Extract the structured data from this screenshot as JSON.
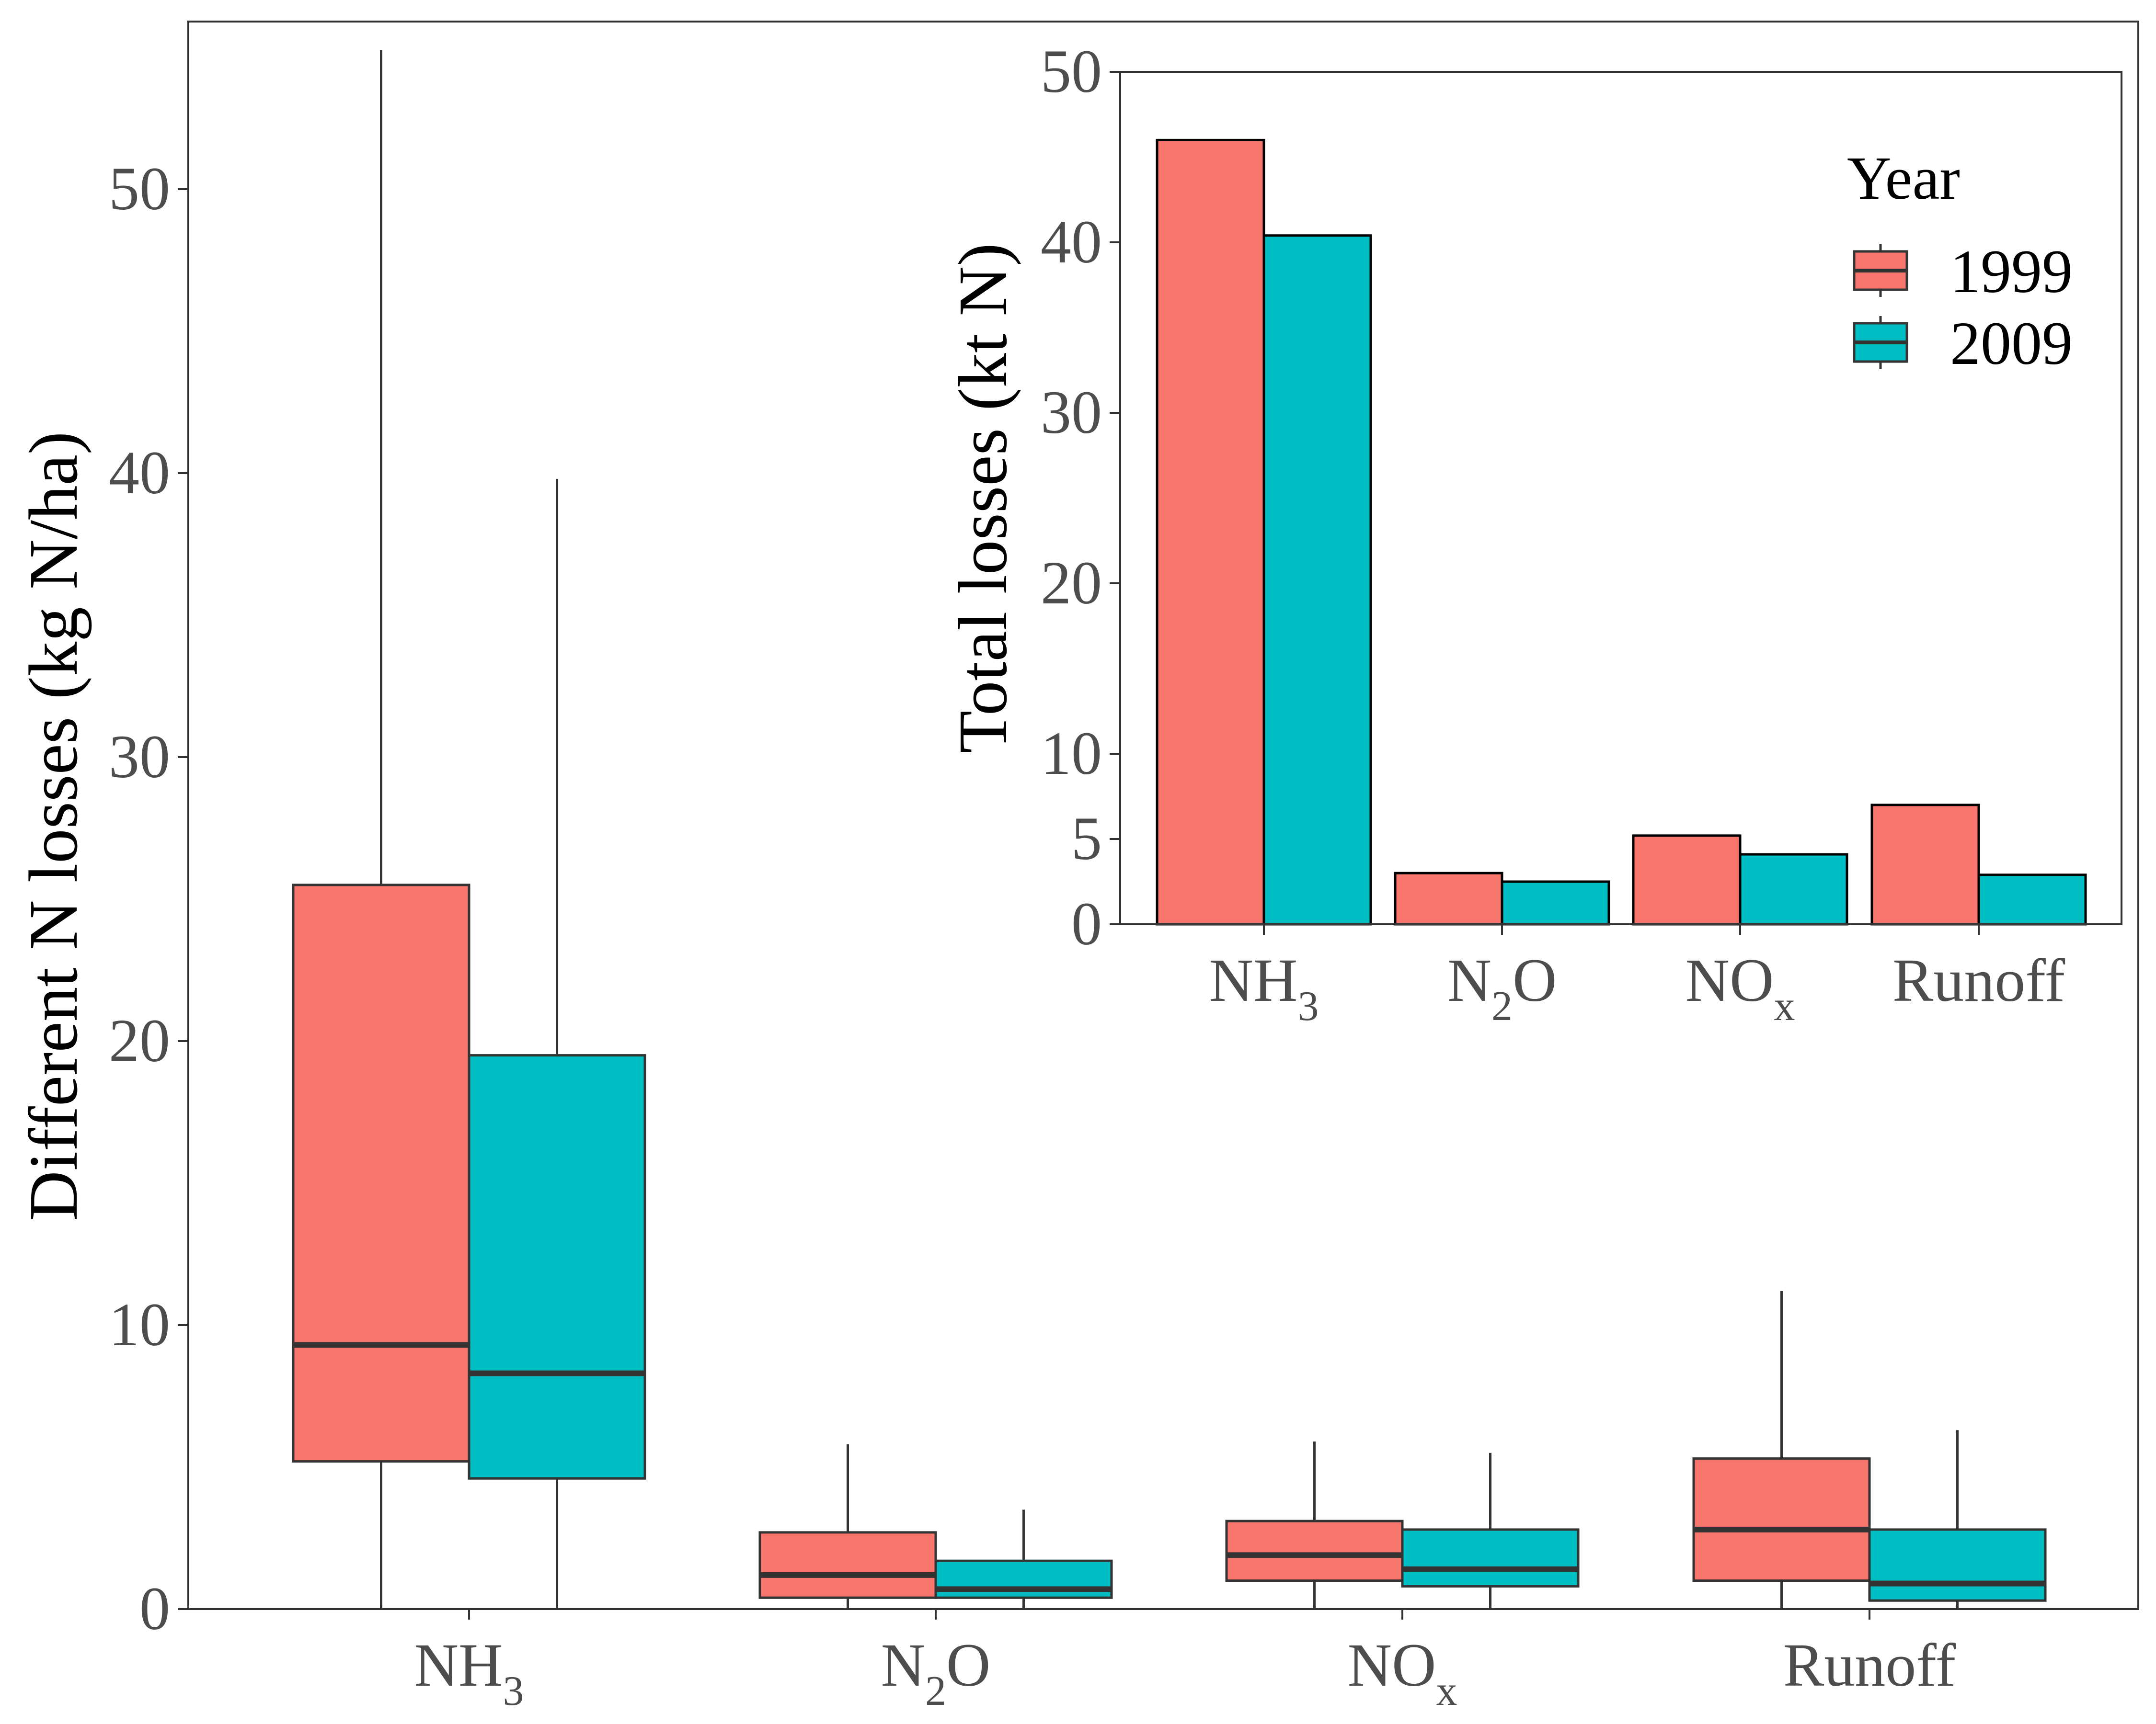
{
  "chart_data": [
    {
      "type": "box",
      "name": "main",
      "ylabel": "Different N losses (kg N/ha)",
      "xlabel": "",
      "ylim": [
        0,
        55
      ],
      "yticks": [
        0,
        10,
        20,
        30,
        40,
        50
      ],
      "categories": [
        {
          "base": "NH",
          "sub": "3",
          "after": ""
        },
        {
          "base": "N",
          "sub": "2",
          "after": "O"
        },
        {
          "base": "NO",
          "sub": "x",
          "after": ""
        },
        {
          "base": "Runoff",
          "sub": "",
          "after": ""
        }
      ],
      "series": [
        {
          "name": "1999",
          "color": "#F8766D",
          "boxes": [
            {
              "min": 0,
              "q1": 5.2,
              "median": 9.3,
              "q3": 25.5,
              "max": 54.9
            },
            {
              "min": 0,
              "q1": 0.4,
              "median": 1.2,
              "q3": 2.7,
              "max": 5.8
            },
            {
              "min": 0,
              "q1": 1.0,
              "median": 1.9,
              "q3": 3.1,
              "max": 5.9
            },
            {
              "min": 0,
              "q1": 1.0,
              "median": 2.8,
              "q3": 5.3,
              "max": 11.2
            }
          ]
        },
        {
          "name": "2009",
          "color": "#00BFC4",
          "boxes": [
            {
              "min": 0,
              "q1": 4.6,
              "median": 8.3,
              "q3": 19.5,
              "max": 39.8
            },
            {
              "min": 0,
              "q1": 0.4,
              "median": 0.7,
              "q3": 1.7,
              "max": 3.5
            },
            {
              "min": 0,
              "q1": 0.8,
              "median": 1.4,
              "q3": 2.8,
              "max": 5.5
            },
            {
              "min": 0,
              "q1": 0.3,
              "median": 0.9,
              "q3": 2.8,
              "max": 6.3
            }
          ]
        }
      ]
    },
    {
      "type": "bar",
      "name": "inset",
      "ylabel": "Total losses (kt N)",
      "xlabel": "",
      "ylim": [
        0,
        50
      ],
      "yticks": [
        0,
        5,
        10,
        20,
        30,
        40,
        50
      ],
      "categories": [
        {
          "base": "NH",
          "sub": "3",
          "after": ""
        },
        {
          "base": "N",
          "sub": "2",
          "after": "O"
        },
        {
          "base": "NO",
          "sub": "x",
          "after": ""
        },
        {
          "base": "Runoff",
          "sub": "",
          "after": ""
        }
      ],
      "series": [
        {
          "name": "1999",
          "color": "#F8766D",
          "values": [
            46.0,
            3.0,
            5.2,
            7.0
          ]
        },
        {
          "name": "2009",
          "color": "#00BFC4",
          "values": [
            40.4,
            2.5,
            4.1,
            2.9
          ]
        }
      ],
      "legend": {
        "title": "Year",
        "position": "top-right",
        "entries": [
          "1999",
          "2009"
        ]
      }
    }
  ]
}
